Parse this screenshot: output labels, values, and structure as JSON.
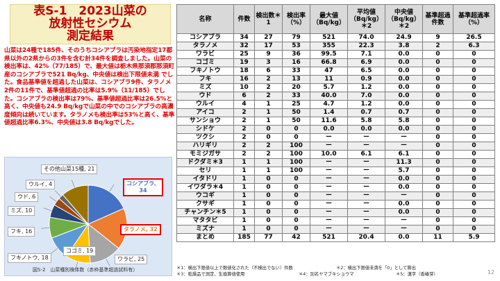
{
  "title": {
    "line1": "表S-1　2023山菜の",
    "line2": "放射性セシウム",
    "line3": "測定結果"
  },
  "summary": "山菜は24種で185件、そのうちコシアブラは汚染地指定17都県以外の2県からの3件を含む計34件を調査しました。山菜の検出率は、42%（77/185）で、最大値は栃木県那須郡那須町産のコシアブラで521 Bq/kg、中央値は検出下限値未満 でした。食品基準値を超過した山菜は、コシアブラ9件、タラノメ2件の11件で、基準値超過の比率は5.9%（11/185）でした。コシアブラの検出率は79%、基準値超過比率は26.5%と高く、中央値も24.9 Bq/kgで山菜の中でのコシアブラの高濃度傾向は続いています。タラノメも検出率は53%と高く、基準値超過比率6.3%、中央値は3.8 Bq/kgでした。",
  "pie": {
    "caption": "図S-2　山菜種別検体数（赤枠基準超過試料有）",
    "slices": [
      {
        "label": "コシアブラ、34",
        "value": 34,
        "color": "#4472c4",
        "highlight": true
      },
      {
        "label": "タラノメ, 32",
        "value": 32,
        "color": "#ed7d31",
        "highlight": true
      },
      {
        "label": "ワラビ, 25",
        "value": 25,
        "color": "#a5a5a5",
        "highlight": false
      },
      {
        "label": "コゴミ, 19",
        "value": 19,
        "color": "#ffc000",
        "highlight": false
      },
      {
        "label": "フキノトウ, 18",
        "value": 18,
        "color": "#5b9bd5",
        "highlight": false
      },
      {
        "label": "フキ, 16",
        "value": 16,
        "color": "#70ad47",
        "highlight": false
      },
      {
        "label": "ミズ, 10",
        "value": 10,
        "color": "#264478",
        "highlight": false
      },
      {
        "label": "ウド, 6",
        "value": 6,
        "color": "#9e480e",
        "highlight": false
      },
      {
        "label": "ウルイ, 4",
        "value": 4,
        "color": "#636363",
        "highlight": false
      },
      {
        "label": "その他山菜15種, 21",
        "value": 21,
        "color": "#997300",
        "highlight": false
      }
    ]
  },
  "table": {
    "headers": [
      "名称",
      "件数",
      "検出数＊1",
      "検出率（%）",
      "最大値（Bq/kg）",
      "平均値（Bq/kg）＊2",
      "中央値（Bq/kg）＊2",
      "基準超過件数",
      "基準超過率（%）"
    ],
    "rows": [
      [
        "コシアブラ",
        "34",
        "27",
        "79",
        "521",
        "74.0",
        "24.9",
        "9",
        "26.5"
      ],
      [
        "タラノメ",
        "32",
        "17",
        "53",
        "355",
        "22.3",
        "3.8",
        "2",
        "6.3"
      ],
      [
        "ワラビ",
        "25",
        "9",
        "36",
        "99.5",
        "7.1",
        "0.0",
        "0",
        "0"
      ],
      [
        "コゴミ",
        "19",
        "3",
        "16",
        "66.8",
        "6.9",
        "0.0",
        "0",
        "0"
      ],
      [
        "フキノトウ",
        "18",
        "6",
        "33",
        "47",
        "6.5",
        "0.0",
        "0",
        "0"
      ],
      [
        "フキ",
        "16",
        "2",
        "13",
        "11",
        "0.9",
        "0.0",
        "0",
        "0"
      ],
      [
        "ミズ",
        "10",
        "2",
        "20",
        "5.7",
        "1.2",
        "0.0",
        "0",
        "0"
      ],
      [
        "ウド",
        "6",
        "2",
        "33",
        "40.0",
        "7.0",
        "0.0",
        "0",
        "0"
      ],
      [
        "ウルイ",
        "4",
        "1",
        "25",
        "4.7",
        "1.2",
        "0.0",
        "0",
        "0"
      ],
      [
        "アイコ",
        "2",
        "1",
        "50",
        "1.4",
        "0.7",
        "0.7",
        "0",
        "0"
      ],
      [
        "サンショウ",
        "2",
        "1",
        "50",
        "11.6",
        "5.8",
        "5.8",
        "0",
        "0"
      ],
      [
        "シドケ",
        "2",
        "0",
        "0",
        "0.0",
        "0.0",
        "0.0",
        "0",
        "0"
      ],
      [
        "ツクシ",
        "2",
        "0",
        "0",
        "ー",
        "ー",
        "ー",
        "0",
        "0"
      ],
      [
        "ハリギリ",
        "2",
        "2",
        "100",
        "ー",
        "ー",
        "ー",
        "0",
        "0"
      ],
      [
        "モミジガサ",
        "2",
        "2",
        "100",
        "10.0",
        "6.1",
        "6.1",
        "0",
        "0"
      ],
      [
        "ドクダミ＊3",
        "1",
        "1",
        "100",
        "ー",
        "ー",
        "11.3",
        "0",
        "0"
      ],
      [
        "セリ",
        "1",
        "1",
        "100",
        "ー",
        "ー",
        "5.7",
        "0",
        "0"
      ],
      [
        "イタドリ",
        "1",
        "0",
        "0",
        "ー",
        "ー",
        "0.0",
        "0",
        "0"
      ],
      [
        "イワダラ＊4",
        "1",
        "0",
        "0",
        "ー",
        "ー",
        "0.0",
        "0",
        "0"
      ],
      [
        "ウコギ",
        "1",
        "0",
        "0",
        "ー",
        "ー",
        "ー",
        "0",
        "0"
      ],
      [
        "クサギ",
        "1",
        "0",
        "0",
        "ー",
        "ー",
        "0.0",
        "0",
        "0"
      ],
      [
        "チャンチン＊5",
        "1",
        "0",
        "0",
        "ー",
        "ー",
        "0.0",
        "0",
        "0"
      ],
      [
        "マタタビ",
        "1",
        "0",
        "0",
        "ー",
        "ー",
        "ー",
        "0",
        "0"
      ],
      [
        "ミズナ",
        "1",
        "0",
        "0",
        "ー",
        "ー",
        "ー",
        "0",
        "0"
      ],
      [
        "まとめ",
        "185",
        "77",
        "42",
        "521",
        "20.4",
        "0.0",
        "11",
        "5.9"
      ]
    ]
  },
  "footnotes": {
    "fn1": "＊1：検出下限値以上で数値化された（不検出でない）件数",
    "fn2": "＊2：検出下限値未満を「0」として算出",
    "fn3": "＊3：乾燥品で測定、生換算値使用",
    "fn4": "＊4：別名ヤマブキショウマ",
    "fn5": "＊5：漢字（香椿芽）"
  },
  "page_number": "12"
}
